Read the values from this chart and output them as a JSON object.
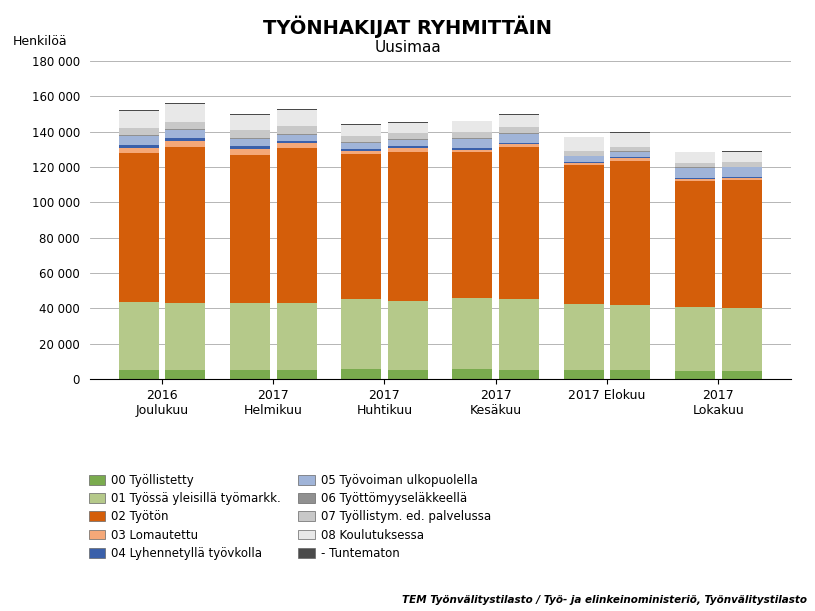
{
  "title": "TYÖNHAKIJAT RYHMITTÄIN",
  "subtitle": "Uusimaa",
  "ylabel": "Henkilöä",
  "footer": "TEM Työnvälitystilasto / Työ- ja elinkeinoministeriö, Työnvälitystilasto",
  "ylim": [
    0,
    180000
  ],
  "yticks": [
    0,
    20000,
    40000,
    60000,
    80000,
    100000,
    120000,
    140000,
    160000,
    180000
  ],
  "group_labels_line1": [
    "2016",
    "2017",
    "2017",
    "2017",
    "2017 Elokuu",
    "2017"
  ],
  "group_labels_line2": [
    "Joulukuu",
    "Helmikuu",
    "Huhtikuu",
    "Kesäkuu",
    "",
    "Lokakuu"
  ],
  "labels": [
    "00 Työllistetty",
    "01 Työssä yleisillä työmarkk.",
    "02 Työtön",
    "03 Lomautettu",
    "04 Lyhennetyllä työvkolla",
    "05 Työvoiman ulkopuolella",
    "06 Työttömyyseläkkeellä",
    "07 Työllistym. ed. palvelussa",
    "08 Koulutuksessa",
    "- Tuntematon"
  ],
  "colors": [
    "#7aab4e",
    "#b5c98a",
    "#d45e0a",
    "#f5a878",
    "#3a60aa",
    "#a0b4d8",
    "#909090",
    "#c8c8c8",
    "#e8e8e8",
    "#4a4a4a"
  ],
  "series_values": [
    [
      5200,
      4800,
      5200,
      5000,
      5500,
      5200,
      5500,
      5200,
      5000,
      4800,
      4500,
      4200
    ],
    [
      38500,
      38000,
      38000,
      38000,
      39500,
      39000,
      40500,
      40000,
      37500,
      37000,
      36000,
      36000
    ],
    [
      84000,
      88500,
      83500,
      87500,
      82500,
      84500,
      82500,
      86000,
      78500,
      81500,
      71500,
      72500
    ],
    [
      3200,
      3700,
      3600,
      2900,
      1600,
      2300,
      1100,
      1600,
      1300,
      1900,
      1000,
      1100
    ],
    [
      1500,
      1500,
      1400,
      1200,
      1200,
      1000,
      900,
      800,
      800,
      600,
      600,
      500
    ],
    [
      5000,
      4500,
      4000,
      3800,
      3500,
      3200,
      5500,
      5000,
      3000,
      2800,
      6000,
      5500
    ],
    [
      500,
      500,
      500,
      500,
      400,
      400,
      400,
      400,
      300,
      300,
      300,
      300
    ],
    [
      4000,
      4000,
      4500,
      4200,
      3500,
      3500,
      3500,
      3500,
      2500,
      2500,
      2500,
      2500
    ],
    [
      10000,
      10000,
      9000,
      9000,
      6000,
      6000,
      6000,
      7000,
      8000,
      8000,
      6000,
      6000
    ],
    [
      500,
      500,
      500,
      500,
      400,
      400,
      400,
      400,
      300,
      300,
      300,
      300
    ]
  ],
  "background_color": "#ffffff",
  "grid_color": "#aaaaaa"
}
